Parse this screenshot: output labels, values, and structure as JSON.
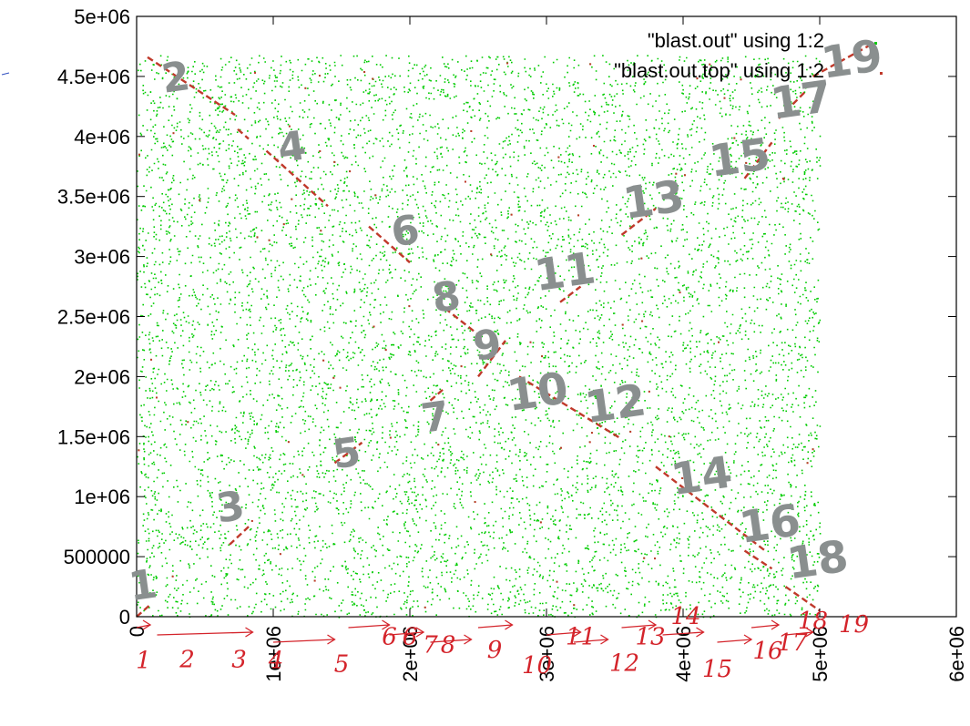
{
  "chart_data": {
    "type": "scatter",
    "title": "",
    "xlabel": "",
    "ylabel": "",
    "xlim": [
      0,
      6000000
    ],
    "ylim": [
      0,
      5000000
    ],
    "x_ticks": [
      {
        "value": 0,
        "label": "0"
      },
      {
        "value": 1000000,
        "label": "1e+06"
      },
      {
        "value": 2000000,
        "label": "2e+06"
      },
      {
        "value": 3000000,
        "label": "3e+06"
      },
      {
        "value": 4000000,
        "label": "4e+06"
      },
      {
        "value": 5000000,
        "label": "5e+06"
      },
      {
        "value": 6000000,
        "label": "6e+06"
      }
    ],
    "y_ticks": [
      {
        "value": 0,
        "label": "0"
      },
      {
        "value": 500000,
        "label": "500000"
      },
      {
        "value": 1000000,
        "label": "1e+06"
      },
      {
        "value": 1500000,
        "label": "1.5e+06"
      },
      {
        "value": 2000000,
        "label": "2e+06"
      },
      {
        "value": 2500000,
        "label": "2.5e+06"
      },
      {
        "value": 3000000,
        "label": "3e+06"
      },
      {
        "value": 3500000,
        "label": "3.5e+06"
      },
      {
        "value": 4000000,
        "label": "4e+06"
      },
      {
        "value": 4500000,
        "label": "4.5e+06"
      },
      {
        "value": 5000000,
        "label": "5e+06"
      }
    ],
    "grid": false,
    "legend_position": "top-right",
    "series": [
      {
        "name": "\"blast.out\" using 1:2",
        "color": "#00cc00",
        "marker": "dot",
        "extent": {
          "x": [
            0,
            5000000
          ],
          "y": [
            0,
            4680000
          ]
        },
        "description_density": "dense uniform background"
      },
      {
        "name": "\"blast.out.top\" using 1:2",
        "color": "#c0392b",
        "marker": "dot",
        "segments": [
          {
            "x": [
              0,
              100000
            ],
            "y": [
              0,
              100000
            ]
          },
          {
            "x": [
              80000,
              720000
            ],
            "y": [
              4660000,
              4180000
            ]
          },
          {
            "x": [
              740000,
              820000
            ],
            "y": [
              4060000,
              3980000
            ]
          },
          {
            "x": [
              950000,
              1400000
            ],
            "y": [
              3880000,
              3420000
            ]
          },
          {
            "x": [
              1700000,
              2000000
            ],
            "y": [
              3250000,
              2950000
            ]
          },
          {
            "x": [
              2200000,
              2500000
            ],
            "y": [
              2620000,
              2350000
            ]
          },
          {
            "x": [
              2500000,
              2700000
            ],
            "y": [
              2000000,
              2300000
            ]
          },
          {
            "x": [
              2800000,
              3550000
            ],
            "y": [
              2000000,
              1480000
            ]
          },
          {
            "x": [
              3100000,
              3250000
            ],
            "y": [
              2620000,
              2750000
            ]
          },
          {
            "x": [
              3550000,
              3800000
            ],
            "y": [
              3180000,
              3400000
            ]
          },
          {
            "x": [
              3800000,
              4600000
            ],
            "y": [
              1250000,
              550000
            ]
          },
          {
            "x": [
              4450000,
              4650000
            ],
            "y": [
              3650000,
              3950000
            ]
          },
          {
            "x": [
              4450000,
              4650000
            ],
            "y": [
              550000,
              400000
            ]
          },
          {
            "x": [
              4750000,
              5000000
            ],
            "y": [
              250000,
              50000
            ]
          },
          {
            "x": [
              4700000,
              4900000
            ],
            "y": [
              4150000,
              4380000
            ]
          },
          {
            "x": [
              4950000,
              5400000
            ],
            "y": [
              4500000,
              4780000
            ]
          },
          {
            "x": [
              680000,
              820000
            ],
            "y": [
              600000,
              750000
            ]
          },
          {
            "x": [
              1450000,
              1650000
            ],
            "y": [
              1280000,
              1450000
            ]
          },
          {
            "x": [
              2150000,
              2250000
            ],
            "y": [
              1800000,
              1900000
            ]
          }
        ]
      }
    ],
    "annotations": {
      "big_numbers": [
        {
          "text": "1",
          "x": 60000,
          "y": 150000
        },
        {
          "text": "2",
          "x": 300000,
          "y": 4380000
        },
        {
          "text": "3",
          "x": 700000,
          "y": 800000
        },
        {
          "text": "4",
          "x": 1150000,
          "y": 3800000
        },
        {
          "text": "5",
          "x": 1550000,
          "y": 1250000
        },
        {
          "text": "6",
          "x": 1980000,
          "y": 3100000
        },
        {
          "text": "7",
          "x": 2200000,
          "y": 1550000
        },
        {
          "text": "8",
          "x": 2280000,
          "y": 2550000
        },
        {
          "text": "9",
          "x": 2580000,
          "y": 2150000
        },
        {
          "text": "10",
          "x": 2950000,
          "y": 1750000
        },
        {
          "text": "11",
          "x": 3150000,
          "y": 2750000
        },
        {
          "text": "12",
          "x": 3520000,
          "y": 1650000
        },
        {
          "text": "13",
          "x": 3800000,
          "y": 3350000
        },
        {
          "text": "14",
          "x": 4150000,
          "y": 1050000
        },
        {
          "text": "15",
          "x": 4430000,
          "y": 3700000
        },
        {
          "text": "16",
          "x": 4650000,
          "y": 650000
        },
        {
          "text": "17",
          "x": 4880000,
          "y": 4180000
        },
        {
          "text": "18",
          "x": 5000000,
          "y": 350000
        },
        {
          "text": "19",
          "x": 5250000,
          "y": 4520000
        }
      ],
      "red_numbers": [
        {
          "text": "1",
          "x": 50000,
          "y": -430000
        },
        {
          "text": "2",
          "x": 370000,
          "y": -420000
        },
        {
          "text": "3",
          "x": 750000,
          "y": -420000
        },
        {
          "text": "4",
          "x": 1020000,
          "y": -430000
        },
        {
          "text": "5",
          "x": 1500000,
          "y": -460000
        },
        {
          "text": "6",
          "x": 1850000,
          "y": -230000
        },
        {
          "text": "6",
          "x": 2000000,
          "y": -230000
        },
        {
          "text": "7",
          "x": 2150000,
          "y": -300000
        },
        {
          "text": "8",
          "x": 2280000,
          "y": -300000
        },
        {
          "text": "9",
          "x": 2620000,
          "y": -340000
        },
        {
          "text": "10",
          "x": 2930000,
          "y": -470000
        },
        {
          "text": "11",
          "x": 3250000,
          "y": -230000
        },
        {
          "text": "12",
          "x": 3570000,
          "y": -450000
        },
        {
          "text": "13",
          "x": 3760000,
          "y": -230000
        },
        {
          "text": "14",
          "x": 4020000,
          "y": -60000
        },
        {
          "text": "15",
          "x": 4250000,
          "y": -500000
        },
        {
          "text": "16",
          "x": 4620000,
          "y": -350000
        },
        {
          "text": "17",
          "x": 4800000,
          "y": -280000
        },
        {
          "text": "18",
          "x": 4950000,
          "y": -100000
        },
        {
          "text": "19",
          "x": 5250000,
          "y": -130000
        }
      ]
    }
  }
}
